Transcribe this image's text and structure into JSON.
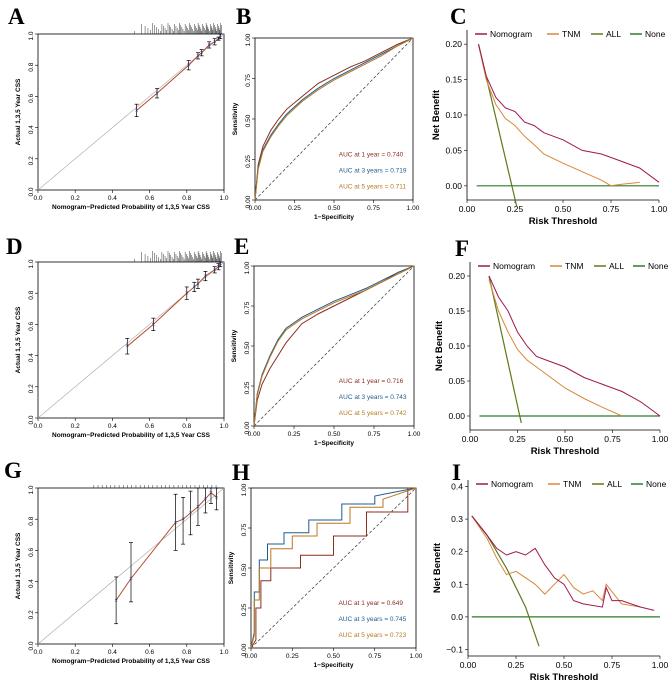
{
  "colors": {
    "nomogram": "#a01750",
    "tnm": "#d8873a",
    "all": "#5d7a1c",
    "none": "#2c7a2c",
    "auc1": "#8b2d1f",
    "auc3": "#1f5d8f",
    "auc5": "#b8791f",
    "calib_pred": "#d43a3a",
    "calib_ideal": "#b0b0b0",
    "calib_smooth": "#6cc04a",
    "calib_point": "#3a3aa0"
  },
  "chart_data": [
    {
      "panel": "A",
      "type": "scatter",
      "subtype": "calibration",
      "xlabel": "Nomogram−Predicted Probability of 1,3,5 Year CSS",
      "ylabel": "Actual 1,3,5 Year CSS",
      "xlim": [
        0,
        1
      ],
      "ylim": [
        0,
        1
      ],
      "xticks": [
        "0.0",
        "0.2",
        "0.4",
        "0.6",
        "0.8",
        "1.0"
      ],
      "yticks": [
        "0.0",
        "0.2",
        "0.4",
        "0.6",
        "0.8",
        "1.0"
      ],
      "points": [
        {
          "x": 0.53,
          "y": 0.51,
          "lo": 0.47,
          "hi": 0.55
        },
        {
          "x": 0.64,
          "y": 0.62,
          "lo": 0.59,
          "hi": 0.65
        },
        {
          "x": 0.81,
          "y": 0.8,
          "lo": 0.77,
          "hi": 0.83
        },
        {
          "x": 0.86,
          "y": 0.86,
          "lo": 0.84,
          "hi": 0.88
        },
        {
          "x": 0.88,
          "y": 0.88,
          "lo": 0.86,
          "hi": 0.9
        },
        {
          "x": 0.92,
          "y": 0.93,
          "lo": 0.91,
          "hi": 0.95
        },
        {
          "x": 0.95,
          "y": 0.95,
          "lo": 0.93,
          "hi": 0.97
        },
        {
          "x": 0.97,
          "y": 0.97,
          "lo": 0.96,
          "hi": 0.98
        },
        {
          "x": 0.98,
          "y": 0.99,
          "lo": 0.97,
          "hi": 1.0
        }
      ]
    },
    {
      "panel": "B",
      "type": "line",
      "subtype": "roc",
      "xlabel": "1−Specificity",
      "ylabel": "Sensitivity",
      "xlim": [
        0,
        1
      ],
      "ylim": [
        0,
        1
      ],
      "xticks": [
        "0.00",
        "0.25",
        "0.50",
        "0.75",
        "1.00"
      ],
      "yticks": [
        "0.00",
        "0.25",
        "0.50",
        "0.75",
        "1.00"
      ],
      "series": [
        {
          "name": "AUC at 1 year = 0.740",
          "color_key": "auc1",
          "x": [
            0,
            0.02,
            0.05,
            0.1,
            0.15,
            0.2,
            0.3,
            0.4,
            0.5,
            0.6,
            0.7,
            0.8,
            0.9,
            1.0
          ],
          "y": [
            0,
            0.22,
            0.33,
            0.43,
            0.5,
            0.56,
            0.64,
            0.72,
            0.77,
            0.82,
            0.86,
            0.91,
            0.96,
            1.0
          ]
        },
        {
          "name": "AUC at 3 years = 0.719",
          "color_key": "auc3",
          "x": [
            0,
            0.02,
            0.05,
            0.1,
            0.15,
            0.2,
            0.3,
            0.4,
            0.5,
            0.6,
            0.7,
            0.8,
            0.9,
            1.0
          ],
          "y": [
            0,
            0.2,
            0.31,
            0.4,
            0.47,
            0.53,
            0.62,
            0.69,
            0.75,
            0.8,
            0.85,
            0.9,
            0.95,
            1.0
          ]
        },
        {
          "name": "AUC at 5 years = 0.711",
          "color_key": "auc5",
          "x": [
            0,
            0.02,
            0.05,
            0.1,
            0.15,
            0.2,
            0.3,
            0.4,
            0.5,
            0.6,
            0.7,
            0.8,
            0.9,
            1.0
          ],
          "y": [
            0,
            0.19,
            0.3,
            0.39,
            0.46,
            0.52,
            0.61,
            0.68,
            0.74,
            0.79,
            0.84,
            0.89,
            0.95,
            1.0
          ]
        }
      ]
    },
    {
      "panel": "C",
      "type": "line",
      "subtype": "decision-curve",
      "xlabel": "Risk Threshold",
      "ylabel": "Net Benefit",
      "xlim": [
        0,
        1
      ],
      "ylim": [
        -0.02,
        0.22
      ],
      "xticks": [
        "0.00",
        "0.25",
        "0.50",
        "0.75",
        "1.00"
      ],
      "yticks": [
        "0.00",
        "0.05",
        "0.10",
        "0.15",
        "0.20"
      ],
      "legend": [
        "Nomogram",
        "TNM",
        "ALL",
        "None"
      ],
      "series": [
        {
          "name": "Nomogram",
          "color_key": "nomogram",
          "x": [
            0.06,
            0.1,
            0.15,
            0.2,
            0.25,
            0.3,
            0.35,
            0.4,
            0.5,
            0.6,
            0.7,
            0.8,
            0.9,
            1.0
          ],
          "y": [
            0.2,
            0.155,
            0.125,
            0.11,
            0.105,
            0.09,
            0.085,
            0.075,
            0.065,
            0.05,
            0.045,
            0.035,
            0.025,
            0.005
          ]
        },
        {
          "name": "TNM",
          "color_key": "tnm",
          "x": [
            0.06,
            0.1,
            0.15,
            0.2,
            0.25,
            0.3,
            0.35,
            0.4,
            0.5,
            0.6,
            0.7,
            0.75,
            0.8,
            0.9
          ],
          "y": [
            0.2,
            0.15,
            0.115,
            0.095,
            0.085,
            0.07,
            0.058,
            0.045,
            0.032,
            0.02,
            0.008,
            0.0,
            0.002,
            0.005
          ]
        },
        {
          "name": "ALL",
          "color_key": "all",
          "x": [
            0.06,
            0.26
          ],
          "y": [
            0.2,
            -0.03
          ]
        },
        {
          "name": "None",
          "color_key": "none",
          "x": [
            0.05,
            1.0
          ],
          "y": [
            0.0,
            0.0
          ]
        }
      ]
    },
    {
      "panel": "D",
      "type": "scatter",
      "subtype": "calibration",
      "xlabel": "Nomogram−Predicted Probability of 1,3,5 Year CSS",
      "ylabel": "Actual 1,3,5 Year CSS",
      "xlim": [
        0,
        1
      ],
      "ylim": [
        0,
        1
      ],
      "xticks": [
        "0.0",
        "0.2",
        "0.4",
        "0.6",
        "0.8",
        "1.0"
      ],
      "yticks": [
        "0.0",
        "0.2",
        "0.4",
        "0.6",
        "0.8",
        "1.0"
      ],
      "points": [
        {
          "x": 0.48,
          "y": 0.46,
          "lo": 0.41,
          "hi": 0.51
        },
        {
          "x": 0.62,
          "y": 0.6,
          "lo": 0.56,
          "hi": 0.64
        },
        {
          "x": 0.8,
          "y": 0.8,
          "lo": 0.76,
          "hi": 0.84
        },
        {
          "x": 0.84,
          "y": 0.84,
          "lo": 0.81,
          "hi": 0.87
        },
        {
          "x": 0.86,
          "y": 0.86,
          "lo": 0.83,
          "hi": 0.89
        },
        {
          "x": 0.9,
          "y": 0.91,
          "lo": 0.88,
          "hi": 0.94
        },
        {
          "x": 0.95,
          "y": 0.95,
          "lo": 0.93,
          "hi": 0.97
        },
        {
          "x": 0.97,
          "y": 0.97,
          "lo": 0.95,
          "hi": 0.99
        },
        {
          "x": 0.98,
          "y": 0.99,
          "lo": 0.97,
          "hi": 1.0
        }
      ]
    },
    {
      "panel": "E",
      "type": "line",
      "subtype": "roc",
      "xlabel": "1−Specificity",
      "ylabel": "Sensitivity",
      "xlim": [
        0,
        1
      ],
      "ylim": [
        0,
        1
      ],
      "xticks": [
        "0.00",
        "0.25",
        "0.50",
        "0.75",
        "1.00"
      ],
      "yticks": [
        "0.00",
        "0.25",
        "0.50",
        "0.75",
        "1.00"
      ],
      "series": [
        {
          "name": "AUC at 1 year = 0.716",
          "color_key": "auc1",
          "x": [
            0,
            0.02,
            0.05,
            0.1,
            0.15,
            0.2,
            0.3,
            0.4,
            0.5,
            0.6,
            0.7,
            0.8,
            0.9,
            1.0
          ],
          "y": [
            0,
            0.16,
            0.26,
            0.36,
            0.44,
            0.52,
            0.64,
            0.7,
            0.75,
            0.8,
            0.85,
            0.9,
            0.96,
            1.0
          ]
        },
        {
          "name": "AUC at 3 years = 0.743",
          "color_key": "auc3",
          "x": [
            0,
            0.02,
            0.05,
            0.1,
            0.15,
            0.2,
            0.3,
            0.4,
            0.5,
            0.6,
            0.7,
            0.8,
            0.9,
            1.0
          ],
          "y": [
            0,
            0.2,
            0.32,
            0.44,
            0.54,
            0.61,
            0.68,
            0.73,
            0.78,
            0.82,
            0.86,
            0.91,
            0.96,
            1.0
          ]
        },
        {
          "name": "AUC at 5 years = 0.742",
          "color_key": "auc5",
          "x": [
            0,
            0.02,
            0.05,
            0.1,
            0.15,
            0.2,
            0.3,
            0.4,
            0.5,
            0.6,
            0.7,
            0.8,
            0.9,
            1.0
          ],
          "y": [
            0,
            0.19,
            0.31,
            0.43,
            0.53,
            0.6,
            0.67,
            0.72,
            0.77,
            0.81,
            0.85,
            0.9,
            0.95,
            1.0
          ]
        }
      ]
    },
    {
      "panel": "F",
      "type": "line",
      "subtype": "decision-curve",
      "xlabel": "Risk Threshold",
      "ylabel": "Net Benefit",
      "xlim": [
        0,
        1
      ],
      "ylim": [
        -0.02,
        0.22
      ],
      "xticks": [
        "0.00",
        "0.25",
        "0.50",
        "0.75",
        "1.00"
      ],
      "yticks": [
        "0.00",
        "0.05",
        "0.10",
        "0.15",
        "0.20"
      ],
      "legend": [
        "Nomogram",
        "TNM",
        "ALL",
        "None"
      ],
      "series": [
        {
          "name": "Nomogram",
          "color_key": "nomogram",
          "x": [
            0.1,
            0.15,
            0.2,
            0.25,
            0.3,
            0.35,
            0.4,
            0.5,
            0.6,
            0.7,
            0.8,
            0.9,
            0.95,
            1.0
          ],
          "y": [
            0.2,
            0.17,
            0.15,
            0.12,
            0.1,
            0.085,
            0.08,
            0.07,
            0.055,
            0.045,
            0.035,
            0.02,
            0.01,
            0.0
          ]
        },
        {
          "name": "TNM",
          "color_key": "tnm",
          "x": [
            0.1,
            0.15,
            0.2,
            0.25,
            0.3,
            0.4,
            0.5,
            0.6,
            0.7,
            0.8
          ],
          "y": [
            0.195,
            0.15,
            0.12,
            0.095,
            0.08,
            0.06,
            0.04,
            0.025,
            0.012,
            0.0
          ]
        },
        {
          "name": "ALL",
          "color_key": "all",
          "x": [
            0.1,
            0.27
          ],
          "y": [
            0.2,
            -0.01
          ]
        },
        {
          "name": "None",
          "color_key": "none",
          "x": [
            0.05,
            1.0
          ],
          "y": [
            0.0,
            0.0
          ]
        }
      ]
    },
    {
      "panel": "G",
      "type": "scatter",
      "subtype": "calibration",
      "xlabel": "Nomogram−Predicted Probability of 1,3,5 Year CSS",
      "ylabel": "Actual 1,3,5 Year CSS",
      "xlim": [
        0,
        1
      ],
      "ylim": [
        0,
        1
      ],
      "xticks": [
        "0.0",
        "0.2",
        "0.4",
        "0.6",
        "0.8",
        "1.0"
      ],
      "yticks": [
        "0.0",
        "0.2",
        "0.4",
        "0.6",
        "0.8",
        "1.0"
      ],
      "points": [
        {
          "x": 0.42,
          "y": 0.28,
          "lo": 0.13,
          "hi": 0.43
        },
        {
          "x": 0.5,
          "y": 0.42,
          "lo": 0.27,
          "hi": 0.65
        },
        {
          "x": 0.74,
          "y": 0.78,
          "lo": 0.6,
          "hi": 0.96
        },
        {
          "x": 0.78,
          "y": 0.8,
          "lo": 0.64,
          "hi": 0.94
        },
        {
          "x": 0.82,
          "y": 0.84,
          "lo": 0.7,
          "hi": 0.98
        },
        {
          "x": 0.86,
          "y": 0.88,
          "lo": 0.76,
          "hi": 1.0
        },
        {
          "x": 0.9,
          "y": 0.93,
          "lo": 0.84,
          "hi": 1.0
        },
        {
          "x": 0.93,
          "y": 0.97,
          "lo": 0.9,
          "hi": 1.0
        },
        {
          "x": 0.96,
          "y": 0.94,
          "lo": 0.86,
          "hi": 1.0
        }
      ]
    },
    {
      "panel": "H",
      "type": "line",
      "subtype": "roc",
      "xlabel": "1−Specificity",
      "ylabel": "Sensitivity",
      "xlim": [
        0,
        1
      ],
      "ylim": [
        0,
        1
      ],
      "xticks": [
        "0.00",
        "0.25",
        "0.50",
        "0.75",
        "1.00"
      ],
      "yticks": [
        "0.00",
        "0.25",
        "0.50",
        "0.75",
        "1.00"
      ],
      "series": [
        {
          "name": "AUC at 1 year = 0.649",
          "color_key": "auc1",
          "x": [
            0,
            0.03,
            0.03,
            0.06,
            0.06,
            0.12,
            0.12,
            0.3,
            0.3,
            0.5,
            0.5,
            0.7,
            0.7,
            0.95,
            0.95,
            1.0
          ],
          "y": [
            0,
            0.05,
            0.25,
            0.25,
            0.42,
            0.42,
            0.5,
            0.5,
            0.58,
            0.58,
            0.7,
            0.7,
            0.85,
            0.85,
            1.0,
            1.0
          ]
        },
        {
          "name": "AUC at 3 years = 0.745",
          "color_key": "auc3",
          "x": [
            0,
            0.02,
            0.02,
            0.05,
            0.05,
            0.1,
            0.1,
            0.2,
            0.2,
            0.35,
            0.35,
            0.55,
            0.55,
            0.75,
            0.75,
            1.0
          ],
          "y": [
            0,
            0.1,
            0.35,
            0.35,
            0.55,
            0.55,
            0.65,
            0.65,
            0.72,
            0.72,
            0.8,
            0.8,
            0.9,
            0.9,
            0.95,
            1.0
          ]
        },
        {
          "name": "AUC at 5 years = 0.723",
          "color_key": "auc5",
          "x": [
            0,
            0.02,
            0.02,
            0.05,
            0.05,
            0.12,
            0.12,
            0.25,
            0.25,
            0.4,
            0.4,
            0.6,
            0.6,
            0.8,
            0.8,
            1.0
          ],
          "y": [
            0,
            0.08,
            0.3,
            0.3,
            0.5,
            0.5,
            0.62,
            0.62,
            0.7,
            0.7,
            0.78,
            0.78,
            0.88,
            0.88,
            0.93,
            1.0
          ]
        }
      ]
    },
    {
      "panel": "I",
      "type": "line",
      "subtype": "decision-curve",
      "xlabel": "Risk Threshold",
      "ylabel": "Net Benefit",
      "xlim": [
        0,
        1
      ],
      "ylim": [
        -0.12,
        0.42
      ],
      "xticks": [
        "0.00",
        "0.25",
        "0.50",
        "0.75",
        "1.00"
      ],
      "yticks": [
        "−0.1",
        "0.0",
        "0.1",
        "0.2",
        "0.3",
        "0.4"
      ],
      "legend": [
        "Nomogram",
        "TNM",
        "ALL",
        "None"
      ],
      "series": [
        {
          "name": "Nomogram",
          "color_key": "nomogram",
          "x": [
            0.02,
            0.1,
            0.15,
            0.2,
            0.25,
            0.3,
            0.35,
            0.4,
            0.45,
            0.5,
            0.55,
            0.6,
            0.7,
            0.72,
            0.75,
            0.8,
            0.9,
            0.97
          ],
          "y": [
            0.31,
            0.25,
            0.21,
            0.19,
            0.2,
            0.19,
            0.21,
            0.16,
            0.12,
            0.1,
            0.05,
            0.04,
            0.03,
            0.09,
            0.05,
            0.05,
            0.03,
            0.02
          ]
        },
        {
          "name": "TNM",
          "color_key": "tnm",
          "x": [
            0.02,
            0.1,
            0.15,
            0.2,
            0.25,
            0.3,
            0.35,
            0.4,
            0.45,
            0.5,
            0.55,
            0.6,
            0.65,
            0.7,
            0.72,
            0.8,
            0.9
          ],
          "y": [
            0.31,
            0.24,
            0.18,
            0.13,
            0.14,
            0.12,
            0.1,
            0.07,
            0.1,
            0.13,
            0.09,
            0.07,
            0.08,
            0.05,
            0.1,
            0.04,
            0.03
          ]
        },
        {
          "name": "ALL",
          "color_key": "all",
          "x": [
            0.02,
            0.1,
            0.2,
            0.3,
            0.37
          ],
          "y": [
            0.31,
            0.25,
            0.15,
            0.03,
            -0.09
          ]
        },
        {
          "name": "None",
          "color_key": "none",
          "x": [
            0.02,
            1.0
          ],
          "y": [
            0.0,
            0.0
          ]
        }
      ]
    }
  ]
}
